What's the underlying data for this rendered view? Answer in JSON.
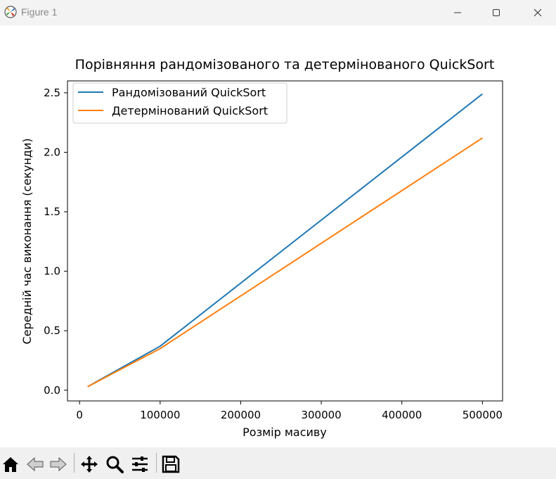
{
  "window": {
    "title": "Figure 1"
  },
  "toolbar": {
    "buttons": [
      "home-icon",
      "back-icon",
      "forward-icon",
      "pan-icon",
      "zoom-icon",
      "configure-subplots-icon",
      "save-icon"
    ]
  },
  "colors": {
    "series1": "#1f77b4",
    "series2": "#ff7f0e"
  },
  "chart_data": {
    "type": "line",
    "title": "Порівняння рандомізованого та детермінованого QuickSort",
    "xlabel": "Розмір масиву",
    "ylabel": "Середній час виконання (секунди)",
    "x": [
      10000,
      100000,
      500000
    ],
    "xlim": [
      -15000,
      525000
    ],
    "ylim": [
      -0.09,
      2.6
    ],
    "xticks": [
      0,
      100000,
      200000,
      300000,
      400000,
      500000
    ],
    "xtick_labels": [
      "0",
      "100000",
      "200000",
      "300000",
      "400000",
      "500000"
    ],
    "yticks": [
      0.0,
      0.5,
      1.0,
      1.5,
      2.0,
      2.5
    ],
    "ytick_labels": [
      "0.0",
      "0.5",
      "1.0",
      "1.5",
      "2.0",
      "2.5"
    ],
    "grid": false,
    "legend_position": "upper-left",
    "series": [
      {
        "name": "Рандомізований QuickSort",
        "values": [
          0.03,
          0.37,
          2.49
        ],
        "color": "#1f77b4"
      },
      {
        "name": "Детермінований QuickSort",
        "values": [
          0.03,
          0.35,
          2.12
        ],
        "color": "#ff7f0e"
      }
    ]
  }
}
